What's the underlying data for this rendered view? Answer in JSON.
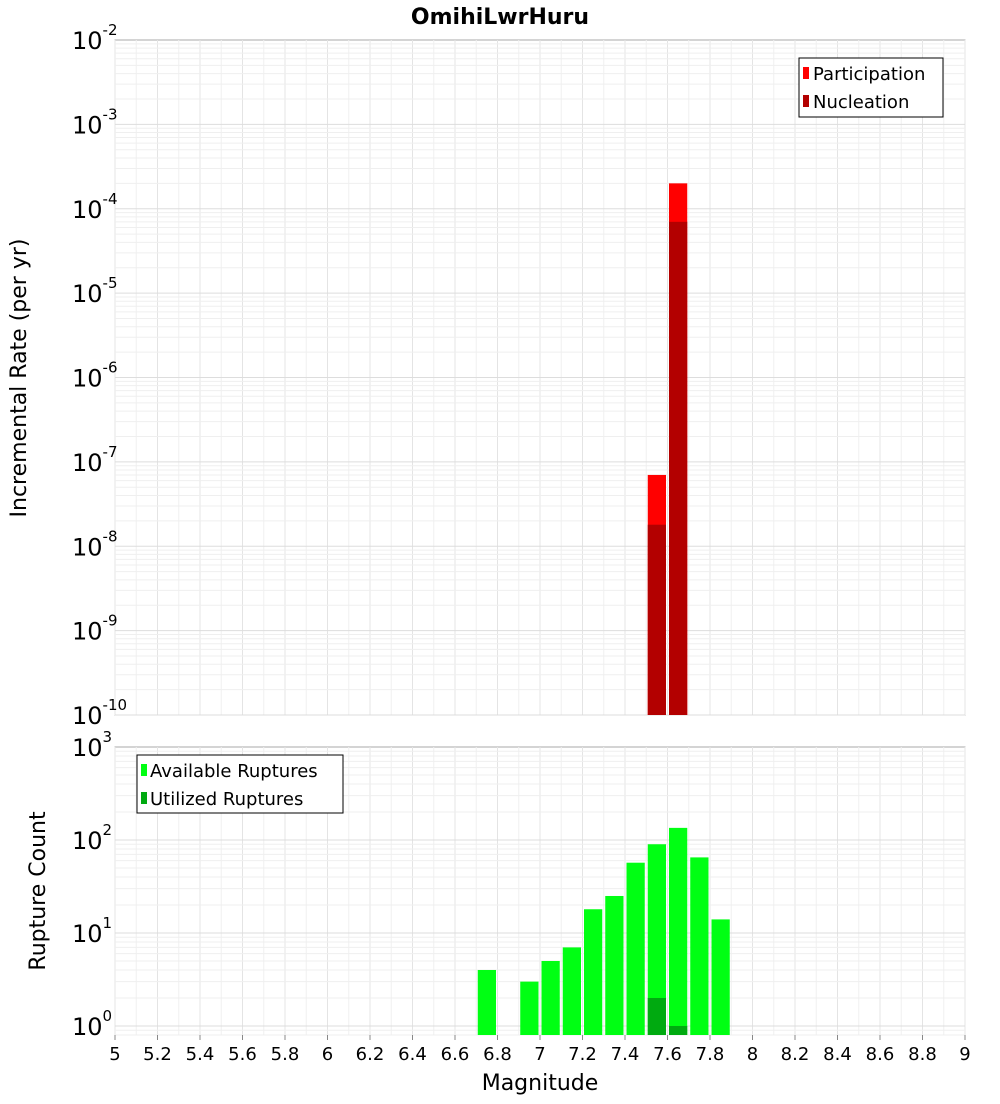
{
  "chart_data": [
    {
      "type": "bar",
      "title": "OmihiLwrHuru",
      "xlabel": "",
      "ylabel": "Incremental Rate (per yr)",
      "yscale": "log",
      "xlim": [
        5,
        9
      ],
      "ylim": [
        1e-10,
        0.01
      ],
      "bin_width": 0.1,
      "grid": true,
      "legend_position": "top-right",
      "y_ticks": [
        {
          "base": "10",
          "exp": "-10",
          "value": 1e-10
        },
        {
          "base": "10",
          "exp": "-9",
          "value": 1e-09
        },
        {
          "base": "10",
          "exp": "-8",
          "value": 1e-08
        },
        {
          "base": "10",
          "exp": "-7",
          "value": 1e-07
        },
        {
          "base": "10",
          "exp": "-6",
          "value": 1e-06
        },
        {
          "base": "10",
          "exp": "-5",
          "value": 1e-05
        },
        {
          "base": "10",
          "exp": "-4",
          "value": 0.0001
        },
        {
          "base": "10",
          "exp": "-3",
          "value": 0.001
        },
        {
          "base": "10",
          "exp": "-2",
          "value": 0.01
        }
      ],
      "series": [
        {
          "name": "Participation",
          "color": "#ff0000",
          "x": [
            7.55,
            7.65
          ],
          "values": [
            7e-08,
            0.0002
          ]
        },
        {
          "name": "Nucleation",
          "color": "#b30000",
          "x": [
            7.55,
            7.65
          ],
          "values": [
            1.8e-08,
            7e-05
          ]
        }
      ]
    },
    {
      "type": "bar",
      "title": "",
      "xlabel": "Magnitude",
      "ylabel": "Rupture Count",
      "yscale": "log",
      "xlim": [
        5,
        9
      ],
      "ylim": [
        0.8,
        1000
      ],
      "bin_width": 0.1,
      "grid": true,
      "legend_position": "top-left",
      "x_ticks": [
        "5",
        "5.2",
        "5.4",
        "5.6",
        "5.8",
        "6",
        "6.2",
        "6.4",
        "6.6",
        "6.8",
        "7",
        "7.2",
        "7.4",
        "7.6",
        "7.8",
        "8",
        "8.2",
        "8.4",
        "8.6",
        "8.8",
        "9"
      ],
      "y_ticks": [
        {
          "base": "10",
          "exp": "0",
          "value": 1
        },
        {
          "base": "10",
          "exp": "1",
          "value": 10
        },
        {
          "base": "10",
          "exp": "2",
          "value": 100
        },
        {
          "base": "10",
          "exp": "3",
          "value": 1000
        }
      ],
      "series": [
        {
          "name": "Available Ruptures",
          "color": "#00ff13",
          "x": [
            6.75,
            6.95,
            7.05,
            7.15,
            7.25,
            7.35,
            7.45,
            7.55,
            7.65,
            7.75,
            7.85
          ],
          "values": [
            4,
            3,
            5,
            7,
            18,
            25,
            57,
            90,
            135,
            65,
            14
          ]
        },
        {
          "name": "Utilized Ruptures",
          "color": "#00aa10",
          "x": [
            7.55,
            7.65
          ],
          "values": [
            2,
            1
          ]
        }
      ]
    }
  ]
}
